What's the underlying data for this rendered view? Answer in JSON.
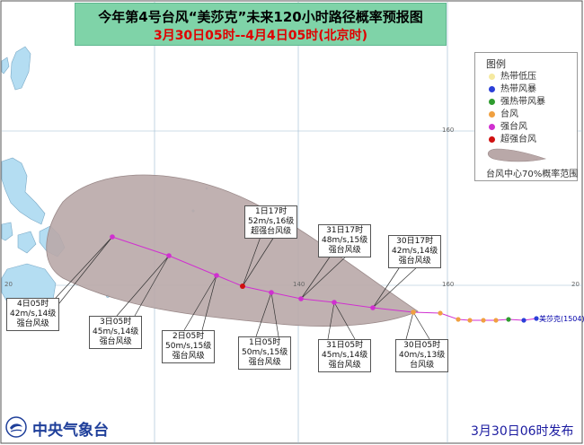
{
  "title": {
    "line1": "今年第4号台风“美莎克”未来120小时路径概率预报图",
    "line2": "3月30日05时--4月4日05时(北京时)"
  },
  "legend": {
    "heading": "图例",
    "items": [
      {
        "label": "热带低压",
        "color": "#f5e9a0"
      },
      {
        "label": "热带风暴",
        "color": "#2b3fd8"
      },
      {
        "label": "强热带风暴",
        "color": "#2f9c2f"
      },
      {
        "label": "台风",
        "color": "#f0a040"
      },
      {
        "label": "强台风",
        "color": "#d030d0"
      },
      {
        "label": "超强台风",
        "color": "#d01010"
      }
    ],
    "cone_label": "台风中心70%概率范围"
  },
  "grid_labels": {
    "lat20": "20",
    "lat20b": "20",
    "lon140": "140",
    "lon160": "160",
    "lon160b": "160"
  },
  "typhoon_name": "美莎克(1504)",
  "forecast_labels": [
    {
      "id": "apr4-05",
      "time": "4日05时",
      "wind": "42m/s,14级",
      "category": "强台风级"
    },
    {
      "id": "apr3-05",
      "time": "3日05时",
      "wind": "45m/s,14级",
      "category": "强台风级"
    },
    {
      "id": "apr2-05",
      "time": "2日05时",
      "wind": "50m/s,15级",
      "category": "强台风级"
    },
    {
      "id": "apr1-17",
      "time": "1日17时",
      "wind": "52m/s,16级",
      "category": "超强台风级"
    },
    {
      "id": "apr1-05",
      "time": "1日05时",
      "wind": "50m/s,15级",
      "category": "强台风级"
    },
    {
      "id": "mar31-17",
      "time": "31日17时",
      "wind": "48m/s,15级",
      "category": "强台风级"
    },
    {
      "id": "mar31-05",
      "time": "31日05时",
      "wind": "45m/s,14级",
      "category": "强台风级"
    },
    {
      "id": "mar30-17",
      "time": "30日17时",
      "wind": "42m/s,14级",
      "category": "强台风级"
    },
    {
      "id": "mar30-05",
      "time": "30日05时",
      "wind": "40m/s,13级",
      "category": "台风级"
    }
  ],
  "issuer": "中央气象台",
  "release_time": "3月30日06时发布",
  "colors": {
    "sea": "#ffffff",
    "land": "#b4ddf2",
    "cone": "#b9a8a8",
    "track_forecast": "#d030d0",
    "track_past": "#2b3fd8",
    "title_bg": "#7fd3a8",
    "title_red": "#e00000"
  }
}
